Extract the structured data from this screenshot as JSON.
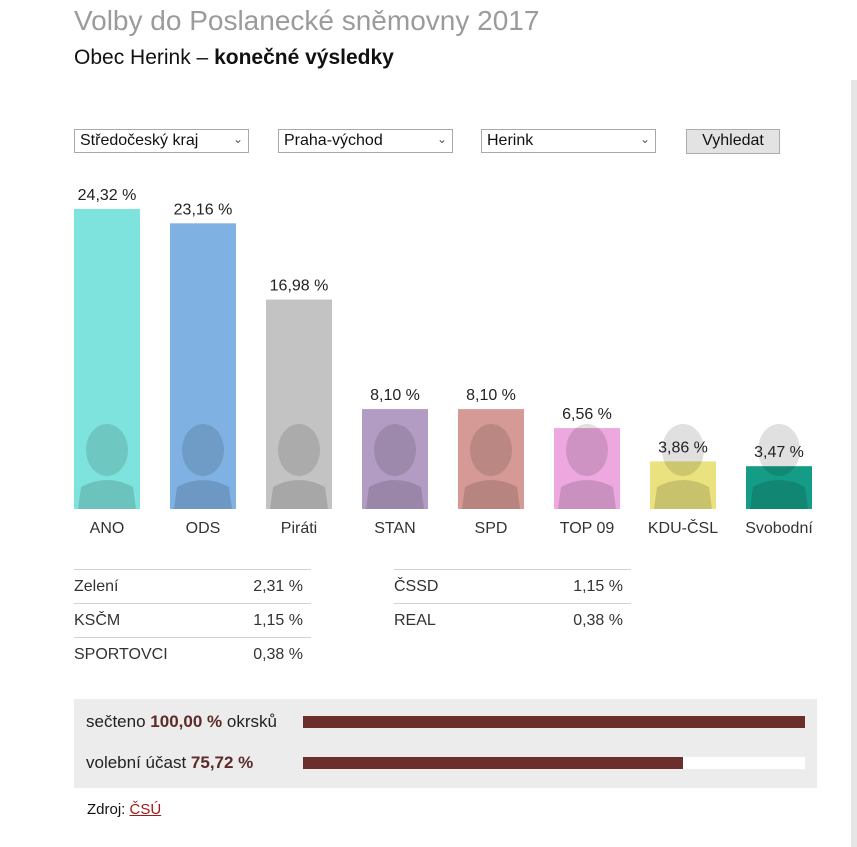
{
  "header": {
    "title": "Volby do Poslanecké sněmovny 2017",
    "subtitle_prefix": "Obec Herink – ",
    "subtitle_bold": "konečné výsledky"
  },
  "filters": {
    "region": "Středočeský kraj",
    "district": "Praha-východ",
    "municipality": "Herink",
    "search_label": "Vyhledat"
  },
  "chart_data": {
    "type": "bar",
    "title": "",
    "xlabel": "",
    "ylabel": "",
    "ylim": [
      0,
      24.32
    ],
    "categories": [
      "ANO",
      "ODS",
      "Piráti",
      "STAN",
      "SPD",
      "TOP 09",
      "KDU-ČSL",
      "Svobodní"
    ],
    "values": [
      24.32,
      23.16,
      16.98,
      8.1,
      8.1,
      6.56,
      3.86,
      3.47
    ],
    "value_labels": [
      "24,32 %",
      "23,16 %",
      "16,98 %",
      "8,10 %",
      "8,10 %",
      "6,56 %",
      "3,86 %",
      "3,47 %"
    ],
    "colors": [
      "#7ee3dc",
      "#7fb2e3",
      "#c3c3c3",
      "#b39cc4",
      "#d59a95",
      "#eca8df",
      "#e9e27e",
      "#149c86"
    ]
  },
  "minor_parties": {
    "left": [
      {
        "name": "Zelení",
        "value": "2,31 %"
      },
      {
        "name": "KSČM",
        "value": "1,15 %"
      },
      {
        "name": "SPORTOVCI",
        "value": "0,38 %"
      }
    ],
    "right": [
      {
        "name": "ČSSD",
        "value": "1,15 %"
      },
      {
        "name": "REAL",
        "value": "0,38 %"
      }
    ]
  },
  "stats": {
    "counted_prefix": "sečteno",
    "counted_value": "100,00 %",
    "counted_suffix": "okrsků",
    "counted_fraction": 1.0,
    "turnout_prefix": "volební účast",
    "turnout_value": "75,72 %",
    "turnout_fraction": 0.7572
  },
  "source": {
    "label": "Zdroj:",
    "link_text": "ČSÚ"
  }
}
